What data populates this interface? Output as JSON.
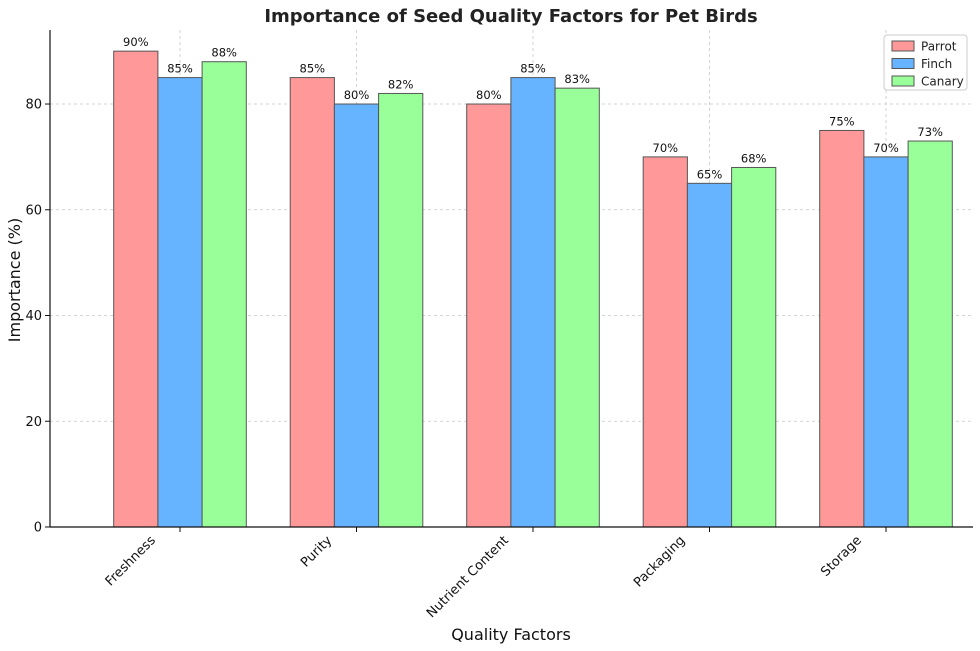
{
  "chart_data": {
    "type": "bar",
    "title": "Importance of Seed Quality Factors for Pet Birds",
    "xlabel": "Quality Factors",
    "ylabel": "Importance (%)",
    "categories": [
      "Freshness",
      "Purity",
      "Nutrient Content",
      "Packaging",
      "Storage"
    ],
    "series": [
      {
        "name": "Parrot",
        "values": [
          90,
          85,
          80,
          70,
          75
        ],
        "color": "#ff9999"
      },
      {
        "name": "Finch",
        "values": [
          85,
          80,
          85,
          65,
          70
        ],
        "color": "#66b3ff"
      },
      {
        "name": "Canary",
        "values": [
          88,
          82,
          83,
          68,
          73
        ],
        "color": "#99ff99"
      }
    ],
    "ylim": [
      0,
      94
    ],
    "yticks": [
      0,
      20,
      40,
      60,
      80
    ],
    "value_suffix": "%",
    "grid": true,
    "legend_position": "top-right"
  }
}
